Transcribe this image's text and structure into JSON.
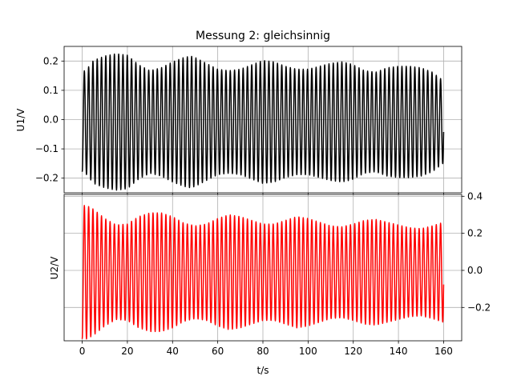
{
  "chart_data": [
    {
      "type": "line",
      "title": "Messung 2: gleichsinnig",
      "xlabel": "",
      "ylabel": "U1/V",
      "xlim": [
        -8,
        168
      ],
      "ylim": [
        -0.25,
        0.25
      ],
      "xticks": [
        0,
        20,
        40,
        60,
        80,
        100,
        120,
        140,
        160
      ],
      "yticks": [
        -0.2,
        -0.1,
        0.0,
        0.1,
        0.2
      ],
      "ytick_labels": [
        "−0.2",
        "−0.1",
        "0.0",
        "0.1",
        "0.2"
      ],
      "y_axis_side": "left",
      "grid": true,
      "series": [
        {
          "color": "#000000",
          "t_range": [
            0,
            160
          ],
          "oscillation_period_s": 1.9,
          "envelope": {
            "t": [
              0,
              2,
              5,
              10,
              15,
              20,
              25,
              30,
              35,
              40,
              45,
              48,
              50,
              55,
              60,
              65,
              70,
              75,
              80,
              85,
              90,
              95,
              100,
              105,
              110,
              115,
              118,
              120,
              125,
              130,
              135,
              140,
              145,
              150,
              155,
              160
            ],
            "amplitude": [
              0.17,
              0.18,
              0.21,
              0.225,
              0.233,
              0.228,
              0.195,
              0.175,
              0.185,
              0.205,
              0.22,
              0.225,
              0.22,
              0.2,
              0.18,
              0.175,
              0.18,
              0.195,
              0.21,
              0.205,
              0.19,
              0.18,
              0.18,
              0.19,
              0.2,
              0.205,
              0.2,
              0.195,
              0.175,
              0.17,
              0.185,
              0.19,
              0.19,
              0.185,
              0.17,
              0.14
            ]
          },
          "y_offset": -0.008
        }
      ]
    },
    {
      "type": "line",
      "xlabel": "t/s",
      "ylabel": "U2/V",
      "xlim": [
        -8,
        168
      ],
      "ylim": [
        -0.38,
        0.41
      ],
      "xticks": [
        0,
        20,
        40,
        60,
        80,
        100,
        120,
        140,
        160
      ],
      "xtick_labels": [
        "0",
        "20",
        "40",
        "60",
        "80",
        "100",
        "120",
        "140",
        "160"
      ],
      "yticks": [
        -0.2,
        0.0,
        0.2,
        0.4
      ],
      "ytick_labels": [
        "−0.2",
        "0.0",
        "0.2",
        "0.4"
      ],
      "y_axis_side": "right",
      "grid": true,
      "series": [
        {
          "color": "#ff0000",
          "t_range": [
            0,
            160
          ],
          "oscillation_period_s": 1.9,
          "envelope": {
            "t": [
              0,
              2,
              5,
              10,
              15,
              20,
              25,
              30,
              35,
              40,
              45,
              50,
              55,
              60,
              65,
              70,
              75,
              80,
              85,
              90,
              95,
              100,
              105,
              110,
              115,
              120,
              125,
              130,
              135,
              140,
              145,
              150,
              155,
              160
            ],
            "amplitude": [
              0.36,
              0.36,
              0.34,
              0.29,
              0.255,
              0.26,
              0.3,
              0.32,
              0.32,
              0.3,
              0.265,
              0.25,
              0.26,
              0.29,
              0.31,
              0.3,
              0.28,
              0.26,
              0.26,
              0.28,
              0.3,
              0.29,
              0.27,
              0.25,
              0.245,
              0.26,
              0.28,
              0.285,
              0.27,
              0.255,
              0.24,
              0.235,
              0.25,
              0.27
            ]
          },
          "y_offset": -0.01
        }
      ]
    }
  ]
}
